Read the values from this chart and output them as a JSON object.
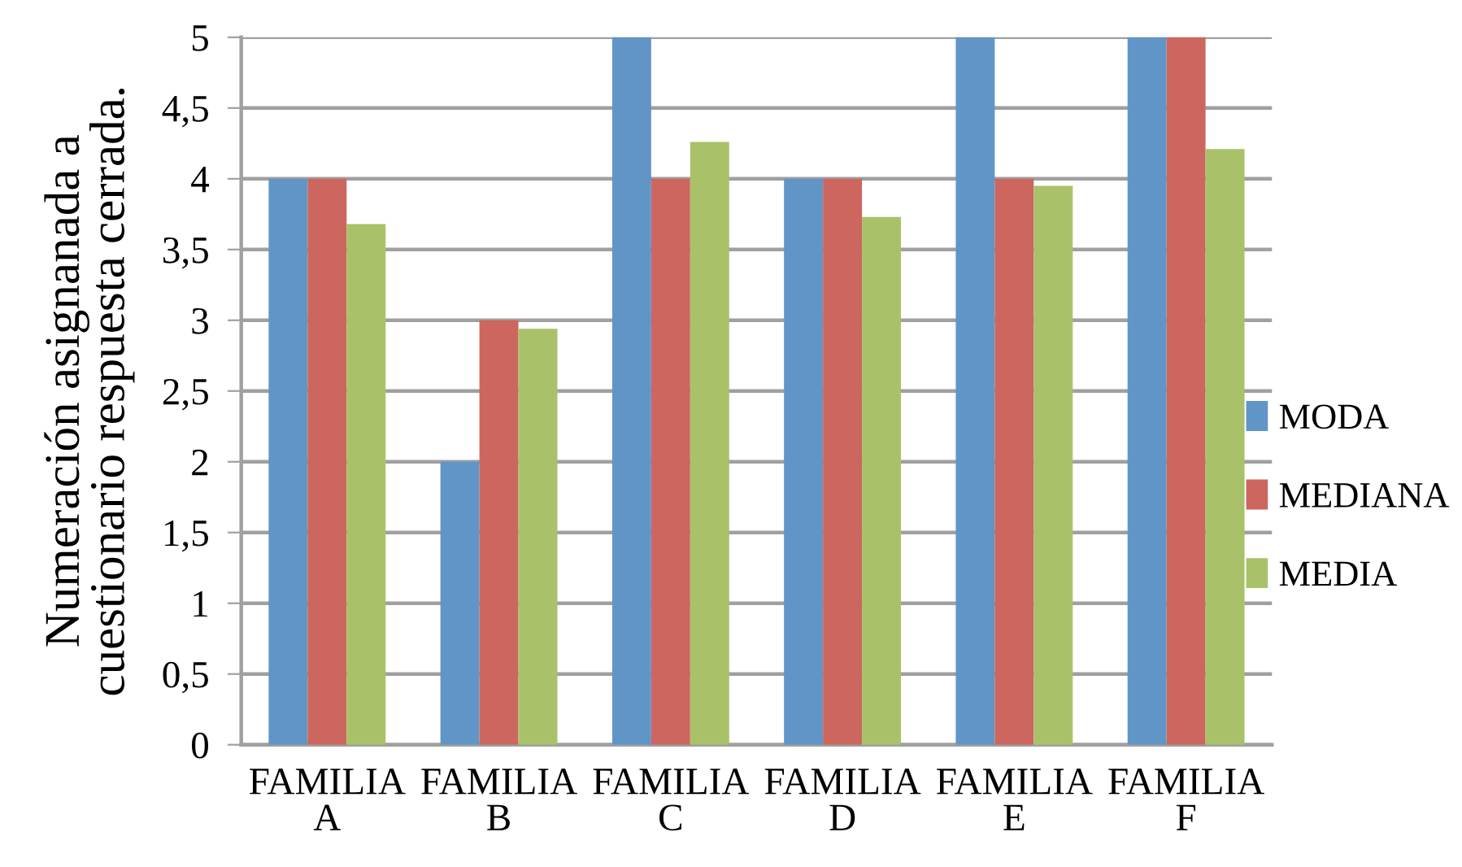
{
  "chart_data": {
    "type": "bar",
    "ylabel": "Numeración asignanada a\ncuestionario respuesta cerrada.",
    "categories": [
      "FAMILIA\nA",
      "FAMILIA\nB",
      "FAMILIA\nC",
      "FAMILIA\nD",
      "FAMILIA\nE",
      "FAMILIA\nF"
    ],
    "series": [
      {
        "name": "MODA",
        "color": "#6195c8",
        "values": [
          4,
          2,
          5,
          4,
          5,
          5
        ]
      },
      {
        "name": "MEDIANA",
        "color": "#cc665f",
        "values": [
          4,
          3,
          4,
          4,
          4,
          5
        ]
      },
      {
        "name": "MEDIA",
        "color": "#a9c26a",
        "values": [
          3.68,
          2.94,
          4.26,
          3.73,
          3.95,
          4.21
        ]
      }
    ],
    "ylim": [
      0,
      5
    ],
    "yticks": [
      0,
      {
        "value": 0.5,
        "label": "0,5"
      },
      1,
      {
        "value": 1.5,
        "label": "1,5"
      },
      2,
      {
        "value": 2.5,
        "label": "2,5"
      },
      3,
      {
        "value": 3.5,
        "label": "3,5"
      },
      4,
      {
        "value": 4.5,
        "label": "4,5"
      },
      5
    ],
    "grid": "y",
    "legend": "right"
  }
}
